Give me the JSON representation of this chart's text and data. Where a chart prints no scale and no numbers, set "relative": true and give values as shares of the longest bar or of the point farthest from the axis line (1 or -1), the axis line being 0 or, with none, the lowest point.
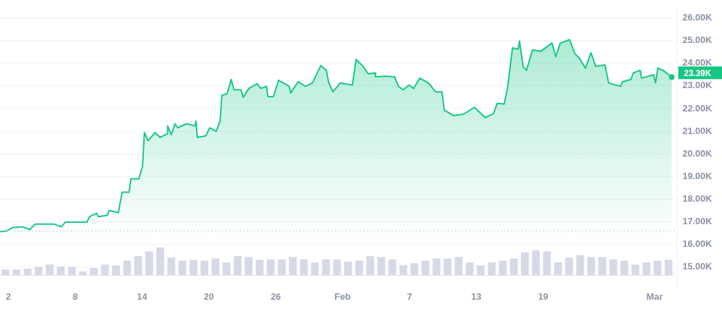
{
  "chart_data": [
    {
      "type": "area",
      "color": "#16c784",
      "x": [
        "--01-01T06:00",
        "--01-01T21:00",
        "--01-02T09:00",
        "--01-03T06:00",
        "--01-03T22:00",
        "--01-04T10:00",
        "--01-06T03:00",
        "--01-06T18:00",
        "--01-07T03:00",
        "--01-09T01:00",
        "--01-09T07:00",
        "--01-09T22:00",
        "--01-10T02:00",
        "--01-10T21:00",
        "--01-11T01:00",
        "--01-11T21:00",
        "--01-12T05:00",
        "--01-12T20:00",
        "--01-13T00:00",
        "--01-13T17:00",
        "--01-14T01:00",
        "--01-14T05:00",
        "--01-14T13:00",
        "--01-15T04:00",
        "--01-15T15:00",
        "--01-16T06:00",
        "--01-16T07:00",
        "--01-16T15:00",
        "--01-16T23:00",
        "--01-17T05:00",
        "--01-18T00:00",
        "--01-18T18:00",
        "--01-18T20:00",
        "--01-18T23:00",
        "--01-19T17:00",
        "--01-20T02:00",
        "--01-20T16:00",
        "--01-21T00:00",
        "--01-21T04:00",
        "--01-21T15:00",
        "--01-22T00:00",
        "--01-22T06:00",
        "--01-22T21:00",
        "--01-23T02:00",
        "--01-23T14:00",
        "--01-24T08:00",
        "--01-24T16:00",
        "--01-25T04:00",
        "--01-25T07:00",
        "--01-25T19:00",
        "--01-26T06:00",
        "--01-27T05:00",
        "--01-27T08:00",
        "--01-28T00:00",
        "--01-28T16:00",
        "--01-29T07:00",
        "--01-30T01:00",
        "--01-30T13:00",
        "--01-30T18:00",
        "--01-31T03:00",
        "--01-31T19:00",
        "--02-01T21:00",
        "--02-02T05:00",
        "--02-02T20:00",
        "--02-03T07:00",
        "--02-03T22:00",
        "--02-03T23:00",
        "--02-04T21:00",
        "--02-05T16:00",
        "--02-06T00:00",
        "--02-06T11:00",
        "--02-06T23:00",
        "--02-07T09:00",
        "--02-07T22:00",
        "--02-08T17:00",
        "--02-09T08:00",
        "--02-09T22:00",
        "--02-10T03:00",
        "--02-10T23:00",
        "--02-11T20:00",
        "--02-12T20:00",
        "--02-13T10:00",
        "--02-13T19:00",
        "--02-14T13:00",
        "--02-14T21:00",
        "--02-15T12:00",
        "--02-15T19:00",
        "--02-16T06:00",
        "--02-16T18:00",
        "--02-16T21:00",
        "--02-17T05:00",
        "--02-17T12:00",
        "--02-18T01:00",
        "--02-18T19:00",
        "--02-19T19:00",
        "--02-20T03:00",
        "--02-20T13:00",
        "--02-21T09:00",
        "--02-21T20:00",
        "--02-22T08:00",
        "--02-22T19:00",
        "--02-23T07:00",
        "--02-23T17:00",
        "--02-24T13:00",
        "--02-24T21:00",
        "--02-25T23:00",
        "--02-26T03:00",
        "--02-26T21:00",
        "--02-27T02:00",
        "--02-27T17:00",
        "--02-27T20:00",
        "--02-28T22:00",
        "--03-01T02:00",
        "--03-01T07:00",
        "--03-01T18:00",
        "--03-02T13:00"
      ],
      "values": [
        16570,
        16600,
        16750,
        16780,
        16660,
        16900,
        16900,
        16780,
        16990,
        16990,
        17230,
        17380,
        17230,
        17290,
        17500,
        17410,
        18310,
        18310,
        18900,
        18900,
        19440,
        20940,
        20580,
        20940,
        20730,
        20880,
        21240,
        20850,
        21330,
        21150,
        21330,
        21240,
        21450,
        20730,
        20790,
        21150,
        21000,
        21450,
        22590,
        22650,
        23280,
        22830,
        22830,
        22500,
        22890,
        23100,
        22890,
        22980,
        22530,
        22530,
        23250,
        22980,
        22680,
        23190,
        22980,
        23130,
        23900,
        23690,
        23160,
        22740,
        23130,
        23040,
        24170,
        23870,
        23540,
        23570,
        23400,
        23430,
        23400,
        22980,
        22830,
        23040,
        22890,
        23340,
        23130,
        22740,
        22740,
        21930,
        21690,
        21750,
        22050,
        21780,
        21600,
        21780,
        22230,
        22200,
        22890,
        24680,
        24620,
        24980,
        23840,
        23690,
        24590,
        24530,
        24890,
        24290,
        24890,
        25040,
        24440,
        24170,
        23780,
        24470,
        23870,
        23930,
        23130,
        22980,
        23190,
        23280,
        23570,
        23690,
        23340,
        23490,
        23130,
        23780,
        23690,
        23390
      ],
      "xlim": [
        "--01-01T06:00",
        "--03-03T00:00"
      ],
      "xticks": [
        {
          "value": "--01-02",
          "label": "2"
        },
        {
          "value": "--01-08",
          "label": "8"
        },
        {
          "value": "--01-14",
          "label": "14"
        },
        {
          "value": "--01-20",
          "label": "20"
        },
        {
          "value": "--01-26",
          "label": "26"
        },
        {
          "value": "--02-01",
          "label": "Feb"
        },
        {
          "value": "--02-07",
          "label": "7"
        },
        {
          "value": "--02-13",
          "label": "13"
        },
        {
          "value": "--02-19",
          "label": "19"
        },
        {
          "value": "--03-01",
          "label": "Mar"
        }
      ],
      "ylim": [
        14000,
        26300
      ],
      "yticks": [
        {
          "value": 15000,
          "label": "15.00K"
        },
        {
          "value": 16000,
          "label": "16.00K"
        },
        {
          "value": 17000,
          "label": "17.00K"
        },
        {
          "value": 18000,
          "label": "18.00K"
        },
        {
          "value": 19000,
          "label": "19.00K"
        },
        {
          "value": 20000,
          "label": "20.00K"
        },
        {
          "value": 21000,
          "label": "21.00K"
        },
        {
          "value": 22000,
          "label": "22.00K"
        },
        {
          "value": 23000,
          "label": "23.00K"
        },
        {
          "value": 24000,
          "label": "24.00K"
        },
        {
          "value": 25000,
          "label": "25.00K"
        },
        {
          "value": 26000,
          "label": "26.00K"
        }
      ],
      "grid": "y",
      "marker": "none",
      "line_style": "solid",
      "legend": false,
      "ref_lines": [
        {
          "axis": "y",
          "value": 16600,
          "color": "#c3c8d4",
          "line_style": "dotted"
        }
      ],
      "annotations": [
        {
          "text": "23.39K",
          "x": "--03-02T13:00",
          "y": 23390
        }
      ]
    },
    {
      "type": "bar",
      "relative": true,
      "color": "#d6d9e6",
      "grid": false,
      "legend": false,
      "categories": [
        null,
        null,
        null,
        null,
        null,
        null,
        null,
        null,
        null,
        null,
        null,
        null,
        null,
        null,
        null,
        null,
        null,
        null,
        null,
        null,
        null,
        null,
        null,
        null,
        null,
        null,
        null,
        null,
        null,
        null,
        null,
        null,
        null,
        null,
        null,
        null,
        null,
        null,
        null,
        null,
        null,
        null,
        null,
        null,
        null,
        null,
        null,
        null,
        null,
        null,
        null,
        null,
        null,
        null,
        null,
        null,
        null,
        null,
        null,
        null,
        null
      ],
      "values": [
        0.22,
        0.22,
        0.24,
        0.31,
        0.39,
        0.32,
        0.31,
        0.15,
        0.27,
        0.39,
        0.36,
        0.53,
        0.69,
        0.86,
        1,
        0.64,
        0.53,
        0.56,
        0.53,
        0.61,
        0.47,
        0.69,
        0.66,
        0.56,
        0.58,
        0.58,
        0.66,
        0.58,
        0.47,
        0.58,
        0.58,
        0.49,
        0.53,
        0.69,
        0.66,
        0.58,
        0.36,
        0.44,
        0.53,
        0.61,
        0.61,
        0.66,
        0.47,
        0.36,
        0.47,
        0.53,
        0.61,
        0.83,
        0.9,
        0.86,
        0.47,
        0.64,
        0.73,
        0.66,
        0.66,
        0.58,
        0.53,
        0.39,
        0.47,
        0.53,
        0.56
      ]
    }
  ]
}
